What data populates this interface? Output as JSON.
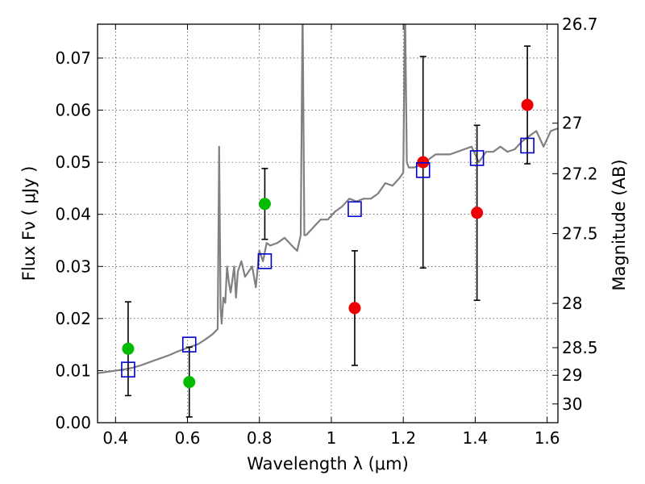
{
  "chart_data": {
    "type": "scatter",
    "title": "",
    "xlabel": "Wavelength  λ (μm)",
    "ylabel": "Flux  Fν  ( μJy )",
    "ylabel_right": "Magnitude (AB)",
    "xlim": [
      0.35,
      1.63
    ],
    "ylim": [
      0.0,
      0.0765
    ],
    "grid": true,
    "colors": {
      "spectrum": "#808080",
      "green": "#00bb00",
      "red": "#ee0000",
      "model": "#0000cc",
      "errorbar": "#000000"
    },
    "x_ticks": [
      {
        "value": 0.4,
        "label": "0.4"
      },
      {
        "value": 0.6,
        "label": "0.6"
      },
      {
        "value": 0.8,
        "label": "0.8"
      },
      {
        "value": 1.0,
        "label": "1"
      },
      {
        "value": 1.2,
        "label": "1.2"
      },
      {
        "value": 1.4,
        "label": "1.4"
      },
      {
        "value": 1.6,
        "label": "1.6"
      }
    ],
    "y_ticks": [
      {
        "value": 0.0,
        "label": "0.00"
      },
      {
        "value": 0.01,
        "label": "0.01"
      },
      {
        "value": 0.02,
        "label": "0.02"
      },
      {
        "value": 0.03,
        "label": "0.03"
      },
      {
        "value": 0.04,
        "label": "0.04"
      },
      {
        "value": 0.05,
        "label": "0.05"
      },
      {
        "value": 0.06,
        "label": "0.06"
      },
      {
        "value": 0.07,
        "label": "0.07"
      }
    ],
    "magnitude_ticks": [
      {
        "flux": 0.0765,
        "label": "26.7"
      },
      {
        "flux": 0.0575,
        "label": "27"
      },
      {
        "flux": 0.0478,
        "label": "27.2"
      },
      {
        "flux": 0.0363,
        "label": "27.5"
      },
      {
        "flux": 0.0229,
        "label": "28"
      },
      {
        "flux": 0.0144,
        "label": "28.5"
      },
      {
        "flux": 0.0091,
        "label": "29"
      },
      {
        "flux": 0.0036,
        "label": "30"
      }
    ],
    "spectrum": {
      "x": [
        0.35,
        0.37,
        0.39,
        0.41,
        0.43,
        0.45,
        0.47,
        0.49,
        0.51,
        0.53,
        0.55,
        0.57,
        0.59,
        0.61,
        0.63,
        0.65,
        0.67,
        0.684,
        0.688,
        0.692,
        0.695,
        0.7,
        0.705,
        0.71,
        0.715,
        0.72,
        0.73,
        0.735,
        0.74,
        0.75,
        0.76,
        0.77,
        0.78,
        0.79,
        0.8,
        0.81,
        0.82,
        0.83,
        0.85,
        0.87,
        0.89,
        0.905,
        0.915,
        0.92,
        0.925,
        0.93,
        0.95,
        0.97,
        0.99,
        1.01,
        1.03,
        1.05,
        1.07,
        1.09,
        1.11,
        1.13,
        1.15,
        1.17,
        1.19,
        1.2,
        1.205,
        1.21,
        1.215,
        1.23,
        1.25,
        1.27,
        1.29,
        1.31,
        1.33,
        1.35,
        1.37,
        1.39,
        1.41,
        1.43,
        1.45,
        1.47,
        1.49,
        1.51,
        1.53,
        1.55,
        1.57,
        1.59,
        1.61,
        1.63
      ],
      "y": [
        0.0095,
        0.0097,
        0.0099,
        0.0101,
        0.0103,
        0.0106,
        0.011,
        0.0115,
        0.012,
        0.0125,
        0.013,
        0.0136,
        0.0141,
        0.0146,
        0.0151,
        0.016,
        0.017,
        0.018,
        0.053,
        0.022,
        0.019,
        0.024,
        0.023,
        0.03,
        0.027,
        0.025,
        0.03,
        0.024,
        0.029,
        0.031,
        0.028,
        0.029,
        0.03,
        0.026,
        0.033,
        0.031,
        0.0345,
        0.034,
        0.0345,
        0.0355,
        0.034,
        0.033,
        0.036,
        0.08,
        0.036,
        0.036,
        0.0375,
        0.039,
        0.039,
        0.0405,
        0.0415,
        0.043,
        0.0425,
        0.043,
        0.043,
        0.044,
        0.046,
        0.0455,
        0.047,
        0.048,
        0.08,
        0.05,
        0.049,
        0.049,
        0.0495,
        0.0505,
        0.0515,
        0.0515,
        0.0515,
        0.052,
        0.0525,
        0.053,
        0.05,
        0.052,
        0.052,
        0.053,
        0.052,
        0.0525,
        0.054,
        0.055,
        0.056,
        0.053,
        0.056,
        0.0565
      ]
    },
    "series": [
      {
        "color": "green",
        "marker": "circle",
        "points": [
          {
            "x": 0.435,
            "y": 0.0142,
            "err": 0.009
          },
          {
            "x": 0.605,
            "y": 0.0078,
            "err": 0.0067
          },
          {
            "x": 0.815,
            "y": 0.042,
            "err": 0.0068
          }
        ]
      },
      {
        "color": "red",
        "marker": "circle",
        "points": [
          {
            "x": 1.065,
            "y": 0.022,
            "err": 0.011
          },
          {
            "x": 1.255,
            "y": 0.05,
            "err": 0.0203
          },
          {
            "x": 1.405,
            "y": 0.0403,
            "err": 0.0168
          },
          {
            "x": 1.545,
            "y": 0.061,
            "err": 0.0113
          }
        ]
      },
      {
        "color": "model",
        "marker": "square",
        "points": [
          {
            "x": 0.435,
            "y": 0.0102
          },
          {
            "x": 0.605,
            "y": 0.015
          },
          {
            "x": 0.815,
            "y": 0.031
          },
          {
            "x": 1.065,
            "y": 0.041
          },
          {
            "x": 1.255,
            "y": 0.0485
          },
          {
            "x": 1.405,
            "y": 0.0508
          },
          {
            "x": 1.545,
            "y": 0.0532
          }
        ]
      }
    ]
  }
}
